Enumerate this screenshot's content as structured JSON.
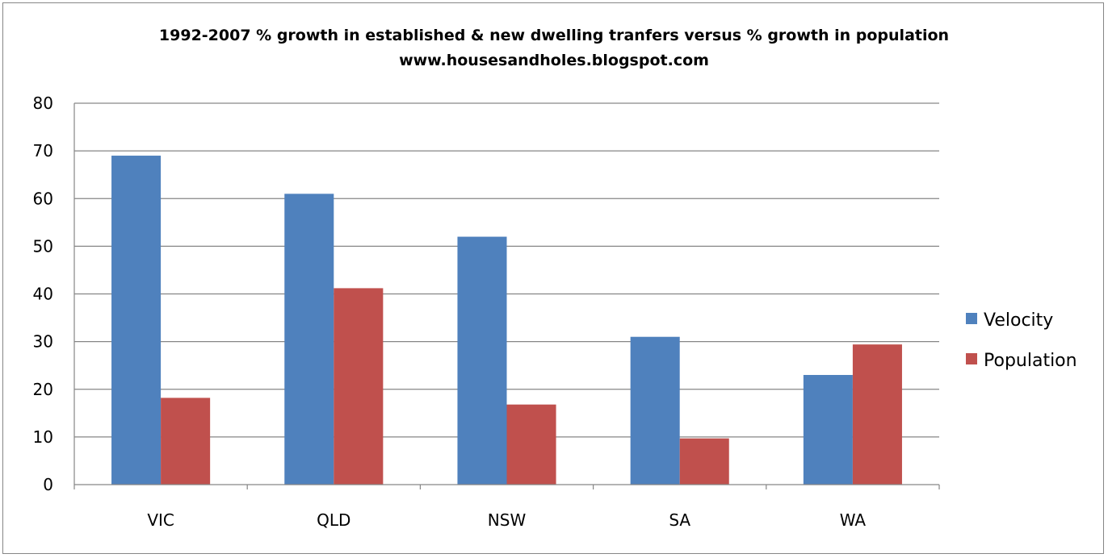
{
  "chart_data": {
    "type": "bar",
    "title": "1992-2007 % growth in established & new dwelling tranfers versus % growth in  population",
    "subtitle": "www.housesandholes.blogspot.com",
    "categories": [
      "VIC",
      "QLD",
      "NSW",
      "SA",
      "WA"
    ],
    "series": [
      {
        "name": "Velocity",
        "color": "#4f81bd",
        "values": [
          69,
          61,
          52,
          31,
          23
        ]
      },
      {
        "name": "Population",
        "color": "#c0504d",
        "values": [
          18.2,
          41.2,
          16.8,
          9.7,
          29.4
        ]
      }
    ],
    "xlabel": "",
    "ylabel": "",
    "ylim": [
      0,
      80
    ],
    "yticks": [
      "0",
      "10",
      "20",
      "30",
      "40",
      "50",
      "60",
      "70",
      "80"
    ],
    "grid": true,
    "legend_position": "right"
  }
}
